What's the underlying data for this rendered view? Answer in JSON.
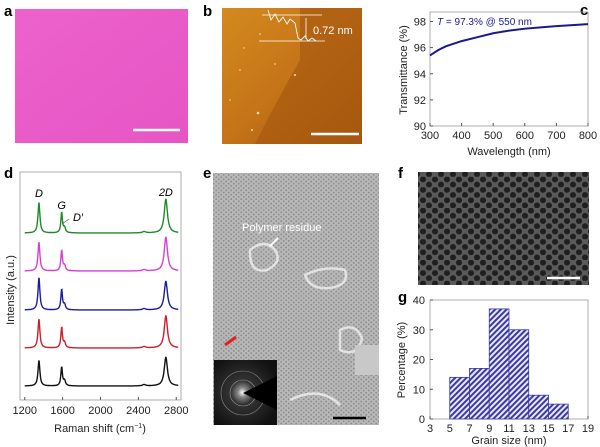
{
  "panels": {
    "a": {
      "label": "a"
    },
    "b": {
      "label": "b",
      "annotation": "0.72 nm"
    },
    "c": {
      "label": "c"
    },
    "d": {
      "label": "d"
    },
    "e": {
      "label": "e",
      "annotation": "Polymer residue"
    },
    "f": {
      "label": "f"
    },
    "g": {
      "label": "g"
    }
  },
  "colors": {
    "pink_film": "#ea5cc9",
    "afm": "#c07014",
    "curve_c": "#1a1a8c",
    "hist": "#3a3aa8"
  },
  "chart_data": [
    {
      "panel": "c",
      "type": "line",
      "xlabel": "Wavelength (nm)",
      "ylabel": "Transmittance (%)",
      "annotation_italic": "T",
      "annotation": " = 97.3% @ 550 nm",
      "xlim": [
        300,
        800
      ],
      "ylim": [
        90,
        98
      ],
      "xticks": [
        300,
        400,
        500,
        600,
        700,
        800
      ],
      "yticks": [
        90,
        92,
        94,
        96,
        98
      ],
      "x": [
        300,
        325,
        350,
        400,
        450,
        500,
        550,
        600,
        650,
        700,
        750,
        800
      ],
      "y": [
        95.4,
        95.8,
        96.1,
        96.5,
        96.8,
        97.1,
        97.3,
        97.45,
        97.55,
        97.65,
        97.72,
        97.8
      ]
    },
    {
      "panel": "d",
      "type": "line",
      "xlabel": "Raman shift (cm",
      "xlabel_sup": "−1",
      "xlabel_end": ")",
      "ylabel": "Intensity (a.u.)",
      "xlim": [
        1150,
        2850
      ],
      "xticks": [
        1200,
        1600,
        2000,
        2400,
        2800
      ],
      "peak_labels": [
        "D",
        "G",
        "D′",
        "2D"
      ],
      "peak_positions": [
        1350,
        1590,
        1620,
        2690
      ],
      "series": [
        {
          "name": "green",
          "color": "#1f8a2a",
          "intensities": [
            0.9,
            0.6,
            0.15,
            1.0
          ]
        },
        {
          "name": "magenta",
          "color": "#d63fd0",
          "intensities": [
            0.85,
            0.6,
            0.15,
            1.0
          ]
        },
        {
          "name": "blue",
          "color": "#1c1ca0",
          "intensities": [
            0.95,
            0.6,
            0.15,
            0.85
          ]
        },
        {
          "name": "red",
          "color": "#c8202a",
          "intensities": [
            0.85,
            0.6,
            0.15,
            0.95
          ]
        },
        {
          "name": "black",
          "color": "#111111",
          "intensities": [
            0.75,
            0.55,
            0.15,
            0.85
          ]
        }
      ]
    },
    {
      "panel": "g",
      "type": "bar",
      "xlabel": "Grain size (nm)",
      "ylabel": "Percentage (%)",
      "xlim": [
        3,
        19
      ],
      "ylim": [
        0,
        40
      ],
      "xticks": [
        3,
        5,
        7,
        9,
        11,
        13,
        15,
        17,
        19
      ],
      "yticks": [
        0,
        10,
        20,
        30,
        40
      ],
      "bins": [
        [
          5,
          7
        ],
        [
          7,
          9
        ],
        [
          9,
          11
        ],
        [
          11,
          13
        ],
        [
          13,
          15
        ],
        [
          15,
          17
        ]
      ],
      "values": [
        14,
        17,
        37,
        30,
        8,
        5
      ]
    }
  ]
}
